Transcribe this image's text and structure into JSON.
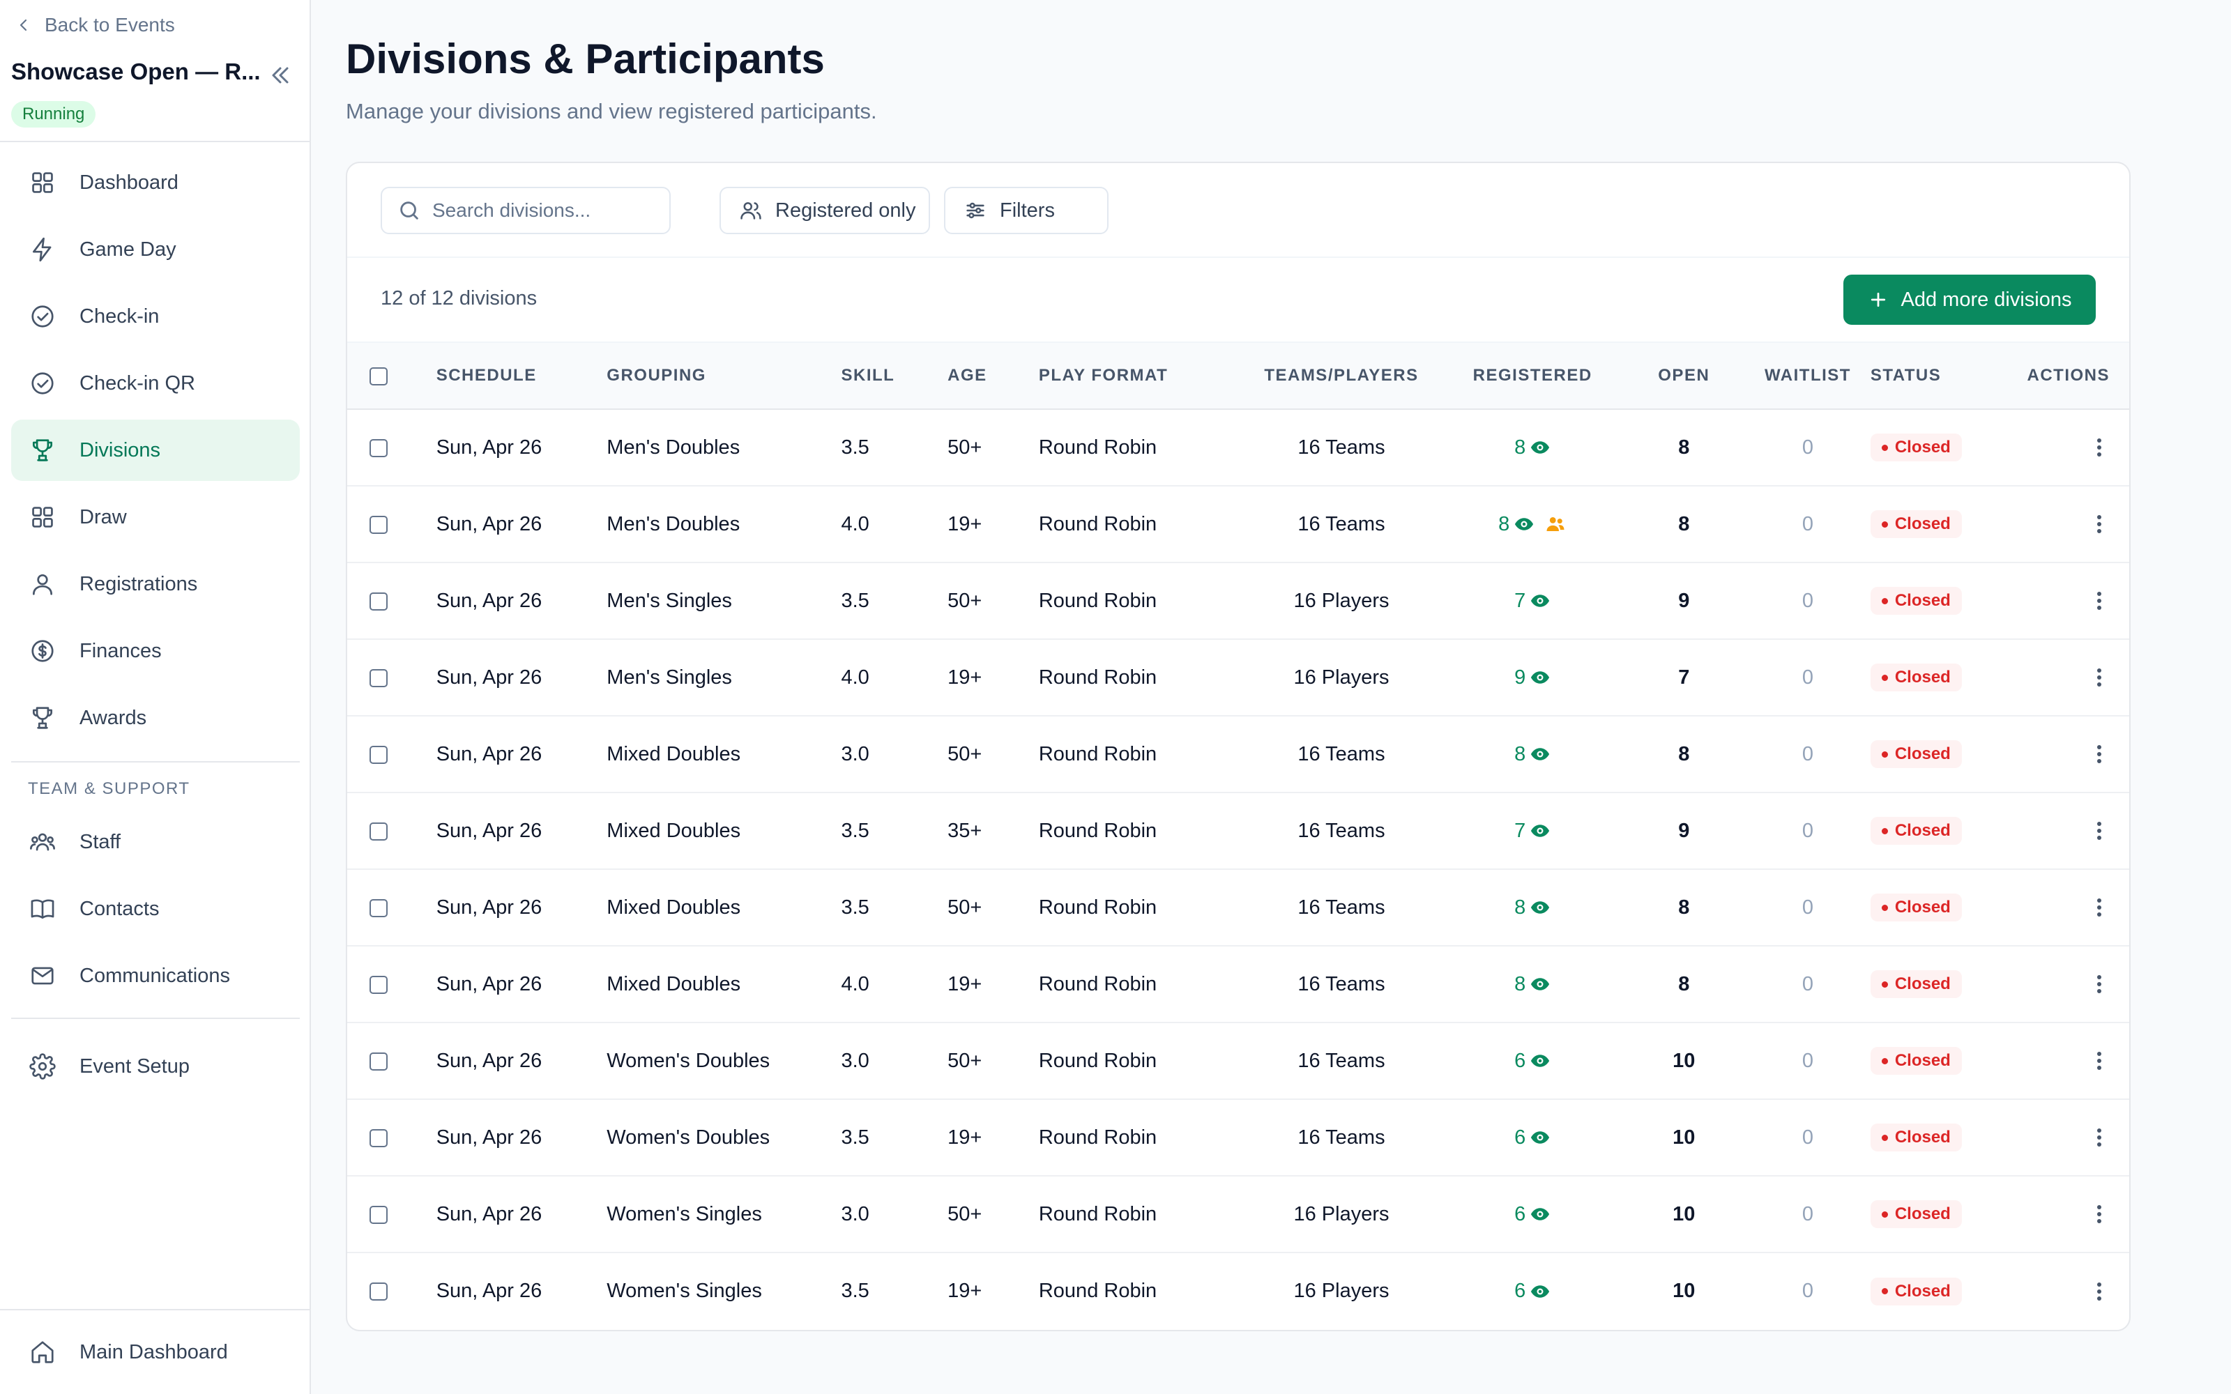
{
  "sidebar": {
    "back_label": "Back to Events",
    "event_title": "Showcase Open — R...",
    "event_status": "Running",
    "nav": [
      {
        "label": "Dashboard",
        "icon": "grid-icon",
        "active": false
      },
      {
        "label": "Game Day",
        "icon": "lightning-icon",
        "active": false
      },
      {
        "label": "Check-in",
        "icon": "check-circle-icon",
        "active": false
      },
      {
        "label": "Check-in QR",
        "icon": "check-circle-icon",
        "active": false
      },
      {
        "label": "Divisions",
        "icon": "trophy-icon",
        "active": true
      },
      {
        "label": "Draw",
        "icon": "grid-icon",
        "active": false
      },
      {
        "label": "Registrations",
        "icon": "user-icon",
        "active": false
      },
      {
        "label": "Finances",
        "icon": "dollar-circle-icon",
        "active": false
      },
      {
        "label": "Awards",
        "icon": "trophy-icon",
        "active": false
      }
    ],
    "section_label": "TEAM & SUPPORT",
    "support_nav": [
      {
        "label": "Staff",
        "icon": "team-icon"
      },
      {
        "label": "Contacts",
        "icon": "book-icon"
      },
      {
        "label": "Communications",
        "icon": "mail-icon"
      }
    ],
    "setup_label": "Event Setup",
    "main_dashboard_label": "Main Dashboard"
  },
  "page": {
    "title": "Divisions & Participants",
    "subtitle": "Manage your divisions and view registered participants."
  },
  "toolbar": {
    "search_placeholder": "Search divisions...",
    "search_value": "",
    "registered_only_label": "Registered only",
    "filters_label": "Filters",
    "count_text": "12 of 12 divisions",
    "add_button_label": "Add more divisions"
  },
  "colors": {
    "accent": "#0a8a5f",
    "active_nav_bg": "#e8f7ef",
    "closed_red": "#dc2626",
    "team_icon_amber": "#f59e0b"
  },
  "table": {
    "columns": [
      "SCHEDULE",
      "GROUPING",
      "SKILL",
      "AGE",
      "PLAY FORMAT",
      "TEAMS/PLAYERS",
      "REGISTERED",
      "OPEN",
      "WAITLIST",
      "STATUS",
      "ACTIONS"
    ],
    "rows": [
      {
        "schedule": "Sun, Apr 26",
        "grouping": "Men's Doubles",
        "skill": "3.5",
        "age": "50+",
        "format": "Round Robin",
        "teams": "16 Teams",
        "registered": "8",
        "open": "8",
        "waitlist": "0",
        "status": "Closed",
        "team_icon": false
      },
      {
        "schedule": "Sun, Apr 26",
        "grouping": "Men's Doubles",
        "skill": "4.0",
        "age": "19+",
        "format": "Round Robin",
        "teams": "16 Teams",
        "registered": "8",
        "open": "8",
        "waitlist": "0",
        "status": "Closed",
        "team_icon": true
      },
      {
        "schedule": "Sun, Apr 26",
        "grouping": "Men's Singles",
        "skill": "3.5",
        "age": "50+",
        "format": "Round Robin",
        "teams": "16 Players",
        "registered": "7",
        "open": "9",
        "waitlist": "0",
        "status": "Closed",
        "team_icon": false
      },
      {
        "schedule": "Sun, Apr 26",
        "grouping": "Men's Singles",
        "skill": "4.0",
        "age": "19+",
        "format": "Round Robin",
        "teams": "16 Players",
        "registered": "9",
        "open": "7",
        "waitlist": "0",
        "status": "Closed",
        "team_icon": false
      },
      {
        "schedule": "Sun, Apr 26",
        "grouping": "Mixed Doubles",
        "skill": "3.0",
        "age": "50+",
        "format": "Round Robin",
        "teams": "16 Teams",
        "registered": "8",
        "open": "8",
        "waitlist": "0",
        "status": "Closed",
        "team_icon": false
      },
      {
        "schedule": "Sun, Apr 26",
        "grouping": "Mixed Doubles",
        "skill": "3.5",
        "age": "35+",
        "format": "Round Robin",
        "teams": "16 Teams",
        "registered": "7",
        "open": "9",
        "waitlist": "0",
        "status": "Closed",
        "team_icon": false
      },
      {
        "schedule": "Sun, Apr 26",
        "grouping": "Mixed Doubles",
        "skill": "3.5",
        "age": "50+",
        "format": "Round Robin",
        "teams": "16 Teams",
        "registered": "8",
        "open": "8",
        "waitlist": "0",
        "status": "Closed",
        "team_icon": false
      },
      {
        "schedule": "Sun, Apr 26",
        "grouping": "Mixed Doubles",
        "skill": "4.0",
        "age": "19+",
        "format": "Round Robin",
        "teams": "16 Teams",
        "registered": "8",
        "open": "8",
        "waitlist": "0",
        "status": "Closed",
        "team_icon": false
      },
      {
        "schedule": "Sun, Apr 26",
        "grouping": "Women's Doubles",
        "skill": "3.0",
        "age": "50+",
        "format": "Round Robin",
        "teams": "16 Teams",
        "registered": "6",
        "open": "10",
        "waitlist": "0",
        "status": "Closed",
        "team_icon": false
      },
      {
        "schedule": "Sun, Apr 26",
        "grouping": "Women's Doubles",
        "skill": "3.5",
        "age": "19+",
        "format": "Round Robin",
        "teams": "16 Teams",
        "registered": "6",
        "open": "10",
        "waitlist": "0",
        "status": "Closed",
        "team_icon": false
      },
      {
        "schedule": "Sun, Apr 26",
        "grouping": "Women's Singles",
        "skill": "3.0",
        "age": "50+",
        "format": "Round Robin",
        "teams": "16 Players",
        "registered": "6",
        "open": "10",
        "waitlist": "0",
        "status": "Closed",
        "team_icon": false
      },
      {
        "schedule": "Sun, Apr 26",
        "grouping": "Women's Singles",
        "skill": "3.5",
        "age": "19+",
        "format": "Round Robin",
        "teams": "16 Players",
        "registered": "6",
        "open": "10",
        "waitlist": "0",
        "status": "Closed",
        "team_icon": false
      }
    ]
  }
}
